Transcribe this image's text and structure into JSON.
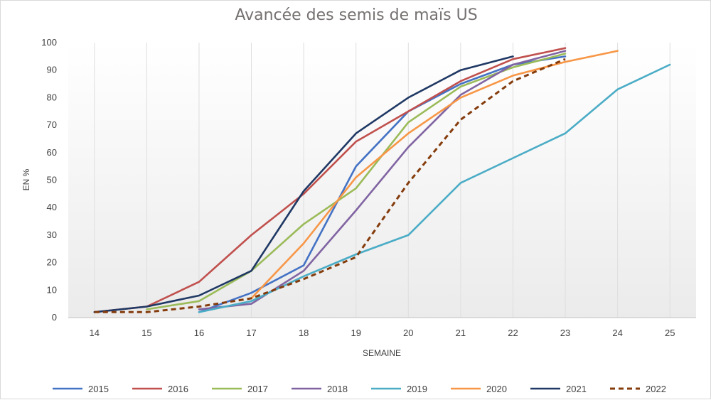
{
  "chart_data": {
    "type": "line",
    "title": "Avancée des semis de maïs US",
    "xlabel": "SEMAINE",
    "ylabel": "EN %",
    "x": [
      14,
      15,
      16,
      17,
      18,
      19,
      20,
      21,
      22,
      23,
      24,
      25
    ],
    "ylim": [
      0,
      100
    ],
    "yticks": [
      0,
      10,
      20,
      30,
      40,
      50,
      60,
      70,
      80,
      90,
      100
    ],
    "grid": "vertical",
    "legend_position": "bottom",
    "series": [
      {
        "name": "2015",
        "color": "#4472c4",
        "dashed": false,
        "points": [
          [
            16,
            2
          ],
          [
            17,
            9
          ],
          [
            18,
            19
          ],
          [
            19,
            55
          ],
          [
            20,
            75
          ],
          [
            21,
            85
          ],
          [
            22,
            92
          ],
          [
            23,
            95
          ]
        ]
      },
      {
        "name": "2016",
        "color": "#c0504d",
        "dashed": false,
        "points": [
          [
            14,
            2
          ],
          [
            15,
            4
          ],
          [
            16,
            13
          ],
          [
            17,
            30
          ],
          [
            18,
            45
          ],
          [
            19,
            64
          ],
          [
            20,
            75
          ],
          [
            21,
            86
          ],
          [
            22,
            94
          ],
          [
            23,
            98
          ]
        ]
      },
      {
        "name": "2017",
        "color": "#9bbb59",
        "dashed": false,
        "points": [
          [
            15,
            3
          ],
          [
            16,
            6
          ],
          [
            17,
            17
          ],
          [
            18,
            34
          ],
          [
            19,
            47
          ],
          [
            20,
            71
          ],
          [
            21,
            84
          ],
          [
            22,
            91
          ],
          [
            23,
            96
          ]
        ]
      },
      {
        "name": "2018",
        "color": "#8064a2",
        "dashed": false,
        "points": [
          [
            16,
            3
          ],
          [
            17,
            5
          ],
          [
            18,
            17
          ],
          [
            19,
            39
          ],
          [
            20,
            62
          ],
          [
            21,
            81
          ],
          [
            22,
            92
          ],
          [
            23,
            97
          ]
        ]
      },
      {
        "name": "2019",
        "color": "#4bacc6",
        "dashed": false,
        "points": [
          [
            16,
            2
          ],
          [
            17,
            6
          ],
          [
            18,
            15
          ],
          [
            19,
            23
          ],
          [
            20,
            30
          ],
          [
            21,
            49
          ],
          [
            22,
            58
          ],
          [
            23,
            67
          ],
          [
            24,
            83
          ],
          [
            25,
            92
          ]
        ]
      },
      {
        "name": "2020",
        "color": "#f79646",
        "dashed": false,
        "points": [
          [
            17,
            7
          ],
          [
            18,
            27
          ],
          [
            19,
            51
          ],
          [
            20,
            67
          ],
          [
            21,
            80
          ],
          [
            22,
            88
          ],
          [
            23,
            93
          ],
          [
            24,
            97
          ]
        ]
      },
      {
        "name": "2021",
        "color": "#1f3864",
        "dashed": false,
        "points": [
          [
            14,
            2
          ],
          [
            15,
            4
          ],
          [
            16,
            8
          ],
          [
            17,
            17
          ],
          [
            18,
            46
          ],
          [
            19,
            67
          ],
          [
            20,
            80
          ],
          [
            21,
            90
          ],
          [
            22,
            95
          ]
        ]
      },
      {
        "name": "2022",
        "color": "#843c0c",
        "dashed": true,
        "points": [
          [
            14,
            2
          ],
          [
            15,
            2
          ],
          [
            16,
            4
          ],
          [
            17,
            7
          ],
          [
            18,
            14
          ],
          [
            19,
            22
          ],
          [
            20,
            49
          ],
          [
            21,
            72
          ],
          [
            22,
            86
          ],
          [
            23,
            94
          ]
        ]
      }
    ]
  }
}
